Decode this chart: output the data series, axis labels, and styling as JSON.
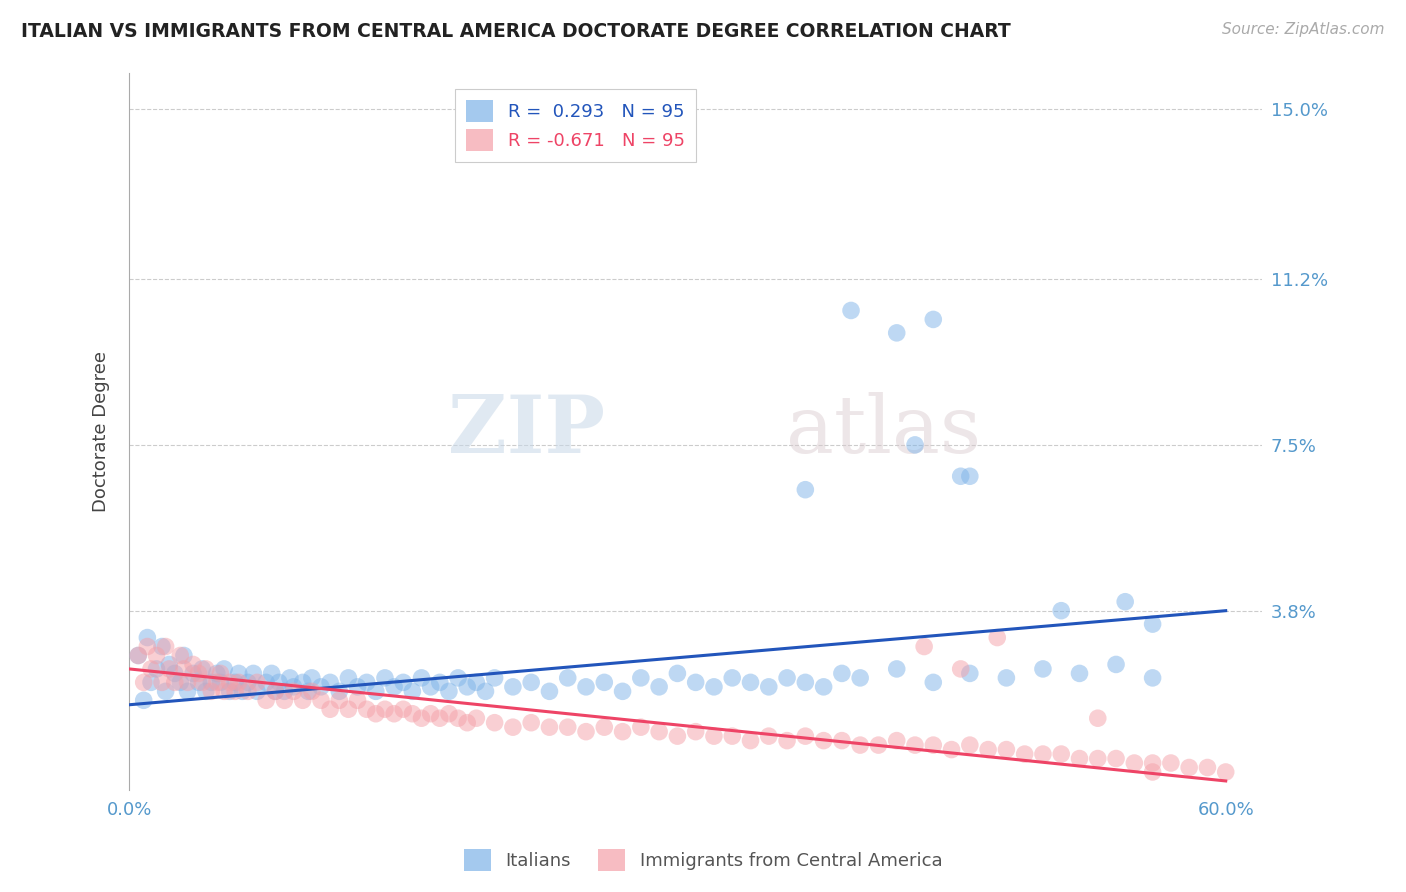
{
  "title": "ITALIAN VS IMMIGRANTS FROM CENTRAL AMERICA DOCTORATE DEGREE CORRELATION CHART",
  "source": "Source: ZipAtlas.com",
  "ylabel": "Doctorate Degree",
  "xlim": [
    0.0,
    0.62
  ],
  "ylim": [
    -0.002,
    0.158
  ],
  "yticks": [
    0.0,
    0.038,
    0.075,
    0.112,
    0.15
  ],
  "ytick_labels": [
    "",
    "3.8%",
    "7.5%",
    "11.2%",
    "15.0%"
  ],
  "xticks": [
    0.0,
    0.1,
    0.2,
    0.3,
    0.4,
    0.5,
    0.6
  ],
  "xtick_labels": [
    "0.0%",
    "",
    "",
    "",
    "",
    "",
    "60.0%"
  ],
  "blue_color": "#7EB3E8",
  "pink_color": "#F4A0A8",
  "blue_line_color": "#2255BB",
  "pink_line_color": "#EE4466",
  "title_color": "#222222",
  "axis_label_color": "#444444",
  "tick_color": "#5599CC",
  "grid_color": "#CCCCCC",
  "watermark_zip": "ZIP",
  "watermark_atlas": "atlas",
  "legend_blue_r": "R =  0.293",
  "legend_blue_n": "N = 95",
  "legend_pink_r": "R = -0.671",
  "legend_pink_n": "N = 95",
  "blue_scatter_x": [
    0.005,
    0.008,
    0.01,
    0.012,
    0.015,
    0.018,
    0.02,
    0.022,
    0.025,
    0.028,
    0.03,
    0.032,
    0.035,
    0.038,
    0.04,
    0.042,
    0.045,
    0.048,
    0.05,
    0.052,
    0.055,
    0.058,
    0.06,
    0.062,
    0.065,
    0.068,
    0.07,
    0.075,
    0.078,
    0.08,
    0.082,
    0.085,
    0.088,
    0.09,
    0.095,
    0.098,
    0.1,
    0.105,
    0.11,
    0.115,
    0.12,
    0.125,
    0.13,
    0.135,
    0.14,
    0.145,
    0.15,
    0.155,
    0.16,
    0.165,
    0.17,
    0.175,
    0.18,
    0.185,
    0.19,
    0.195,
    0.2,
    0.21,
    0.22,
    0.23,
    0.24,
    0.25,
    0.26,
    0.27,
    0.28,
    0.29,
    0.3,
    0.31,
    0.32,
    0.33,
    0.34,
    0.35,
    0.36,
    0.37,
    0.38,
    0.39,
    0.4,
    0.42,
    0.44,
    0.46,
    0.48,
    0.5,
    0.52,
    0.54,
    0.56,
    0.37,
    0.43,
    0.455,
    0.51,
    0.545,
    0.42,
    0.395,
    0.44,
    0.46,
    0.56
  ],
  "blue_scatter_y": [
    0.028,
    0.018,
    0.032,
    0.022,
    0.025,
    0.03,
    0.02,
    0.026,
    0.024,
    0.022,
    0.028,
    0.02,
    0.024,
    0.022,
    0.025,
    0.02,
    0.022,
    0.024,
    0.022,
    0.025,
    0.02,
    0.022,
    0.024,
    0.02,
    0.022,
    0.024,
    0.02,
    0.022,
    0.024,
    0.02,
    0.022,
    0.02,
    0.023,
    0.021,
    0.022,
    0.02,
    0.023,
    0.021,
    0.022,
    0.02,
    0.023,
    0.021,
    0.022,
    0.02,
    0.023,
    0.021,
    0.022,
    0.02,
    0.023,
    0.021,
    0.022,
    0.02,
    0.023,
    0.021,
    0.022,
    0.02,
    0.023,
    0.021,
    0.022,
    0.02,
    0.023,
    0.021,
    0.022,
    0.02,
    0.023,
    0.021,
    0.024,
    0.022,
    0.021,
    0.023,
    0.022,
    0.021,
    0.023,
    0.022,
    0.021,
    0.024,
    0.023,
    0.025,
    0.022,
    0.024,
    0.023,
    0.025,
    0.024,
    0.026,
    0.023,
    0.065,
    0.075,
    0.068,
    0.038,
    0.04,
    0.1,
    0.105,
    0.103,
    0.068,
    0.035
  ],
  "pink_scatter_x": [
    0.005,
    0.008,
    0.01,
    0.012,
    0.015,
    0.018,
    0.02,
    0.022,
    0.025,
    0.028,
    0.03,
    0.032,
    0.035,
    0.038,
    0.04,
    0.042,
    0.045,
    0.048,
    0.05,
    0.052,
    0.055,
    0.058,
    0.06,
    0.065,
    0.07,
    0.075,
    0.08,
    0.085,
    0.09,
    0.095,
    0.1,
    0.105,
    0.11,
    0.115,
    0.12,
    0.125,
    0.13,
    0.135,
    0.14,
    0.145,
    0.15,
    0.155,
    0.16,
    0.165,
    0.17,
    0.175,
    0.18,
    0.185,
    0.19,
    0.2,
    0.21,
    0.22,
    0.23,
    0.24,
    0.25,
    0.26,
    0.27,
    0.28,
    0.29,
    0.3,
    0.31,
    0.32,
    0.33,
    0.34,
    0.35,
    0.36,
    0.37,
    0.38,
    0.39,
    0.4,
    0.41,
    0.42,
    0.43,
    0.44,
    0.45,
    0.46,
    0.47,
    0.48,
    0.49,
    0.5,
    0.51,
    0.52,
    0.53,
    0.54,
    0.55,
    0.56,
    0.57,
    0.58,
    0.59,
    0.6,
    0.435,
    0.455,
    0.475,
    0.53,
    0.56
  ],
  "pink_scatter_y": [
    0.028,
    0.022,
    0.03,
    0.025,
    0.028,
    0.022,
    0.03,
    0.025,
    0.022,
    0.028,
    0.025,
    0.022,
    0.026,
    0.024,
    0.022,
    0.025,
    0.02,
    0.022,
    0.024,
    0.02,
    0.022,
    0.02,
    0.022,
    0.02,
    0.022,
    0.018,
    0.02,
    0.018,
    0.02,
    0.018,
    0.02,
    0.018,
    0.016,
    0.018,
    0.016,
    0.018,
    0.016,
    0.015,
    0.016,
    0.015,
    0.016,
    0.015,
    0.014,
    0.015,
    0.014,
    0.015,
    0.014,
    0.013,
    0.014,
    0.013,
    0.012,
    0.013,
    0.012,
    0.012,
    0.011,
    0.012,
    0.011,
    0.012,
    0.011,
    0.01,
    0.011,
    0.01,
    0.01,
    0.009,
    0.01,
    0.009,
    0.01,
    0.009,
    0.009,
    0.008,
    0.008,
    0.009,
    0.008,
    0.008,
    0.007,
    0.008,
    0.007,
    0.007,
    0.006,
    0.006,
    0.006,
    0.005,
    0.005,
    0.005,
    0.004,
    0.004,
    0.004,
    0.003,
    0.003,
    0.002,
    0.03,
    0.025,
    0.032,
    0.014,
    0.002
  ],
  "blue_trendline_x": [
    0.0,
    0.6
  ],
  "blue_trendline_y": [
    0.017,
    0.038
  ],
  "pink_trendline_x": [
    0.0,
    0.6
  ],
  "pink_trendline_y": [
    0.025,
    0.0
  ]
}
